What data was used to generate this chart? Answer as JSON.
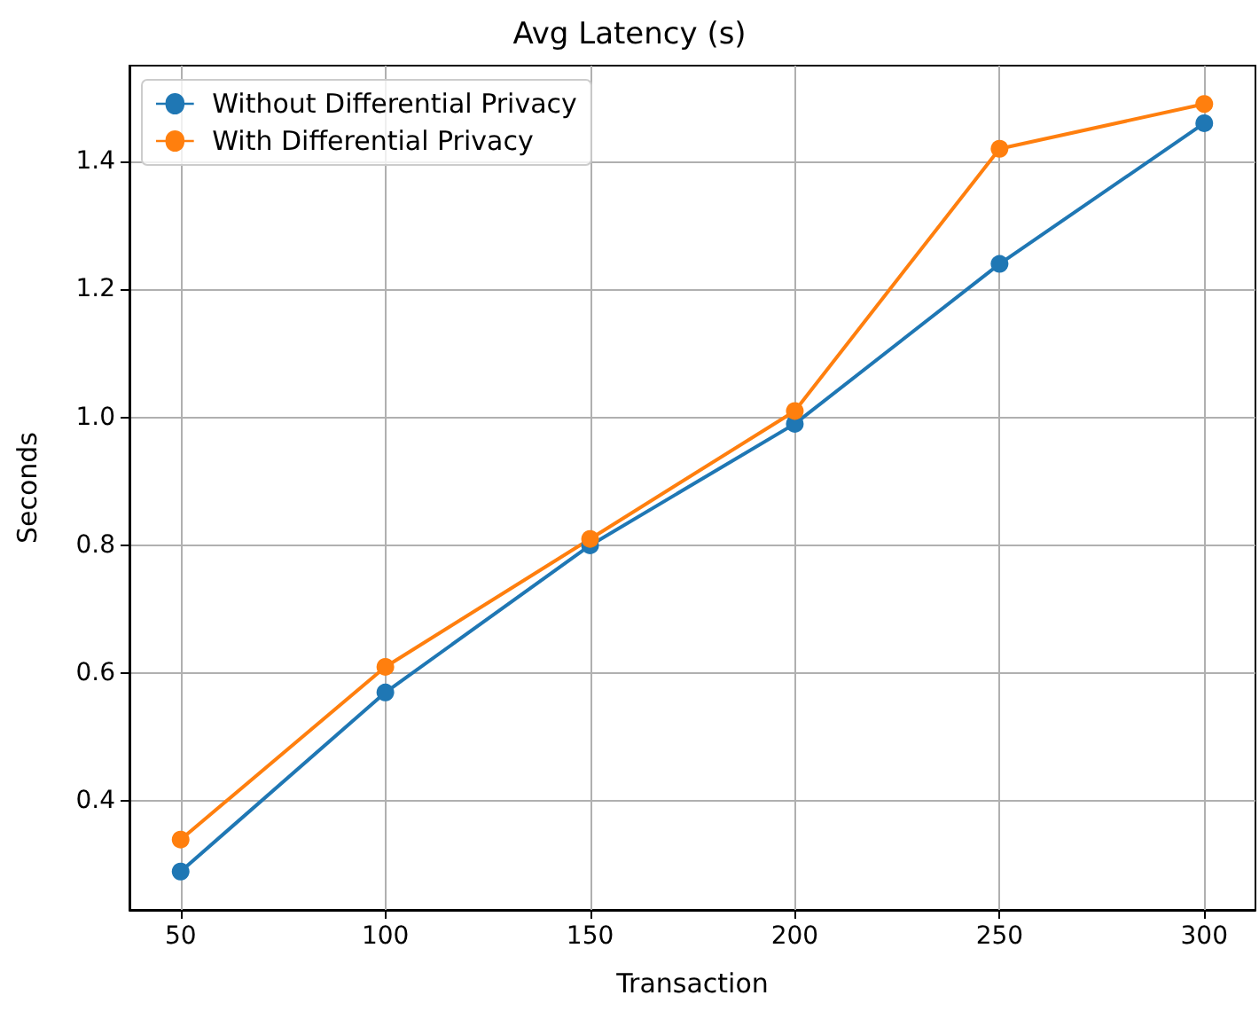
{
  "chart_data": {
    "type": "line",
    "title": "Avg Latency (s)",
    "xlabel": "Transaction",
    "ylabel": "Seconds",
    "x": [
      50,
      100,
      150,
      200,
      250,
      300
    ],
    "series": [
      {
        "name": "Without Differential Privacy",
        "color": "#1f77b4",
        "values": [
          0.29,
          0.57,
          0.8,
          0.99,
          1.24,
          1.46
        ]
      },
      {
        "name": "With Differential Privacy",
        "color": "#ff7f0e",
        "values": [
          0.34,
          0.61,
          0.81,
          1.01,
          1.42,
          1.49
        ]
      }
    ],
    "xlim": [
      37.5,
      312.5
    ],
    "xticks": [
      50,
      100,
      150,
      200,
      250,
      300
    ],
    "ylim": [
      0.23,
      1.55
    ],
    "yticks": [
      {
        "value": 0.4,
        "label": "0.4"
      },
      {
        "value": 0.6,
        "label": "0.6"
      },
      {
        "value": 0.8,
        "label": "0.8"
      },
      {
        "value": 1.0,
        "label": "1.0"
      },
      {
        "value": 1.2,
        "label": "1.2"
      },
      {
        "value": 1.4,
        "label": "1.4"
      }
    ],
    "grid": true,
    "legend": "top left",
    "marker": "circle",
    "line_style": "solid"
  }
}
